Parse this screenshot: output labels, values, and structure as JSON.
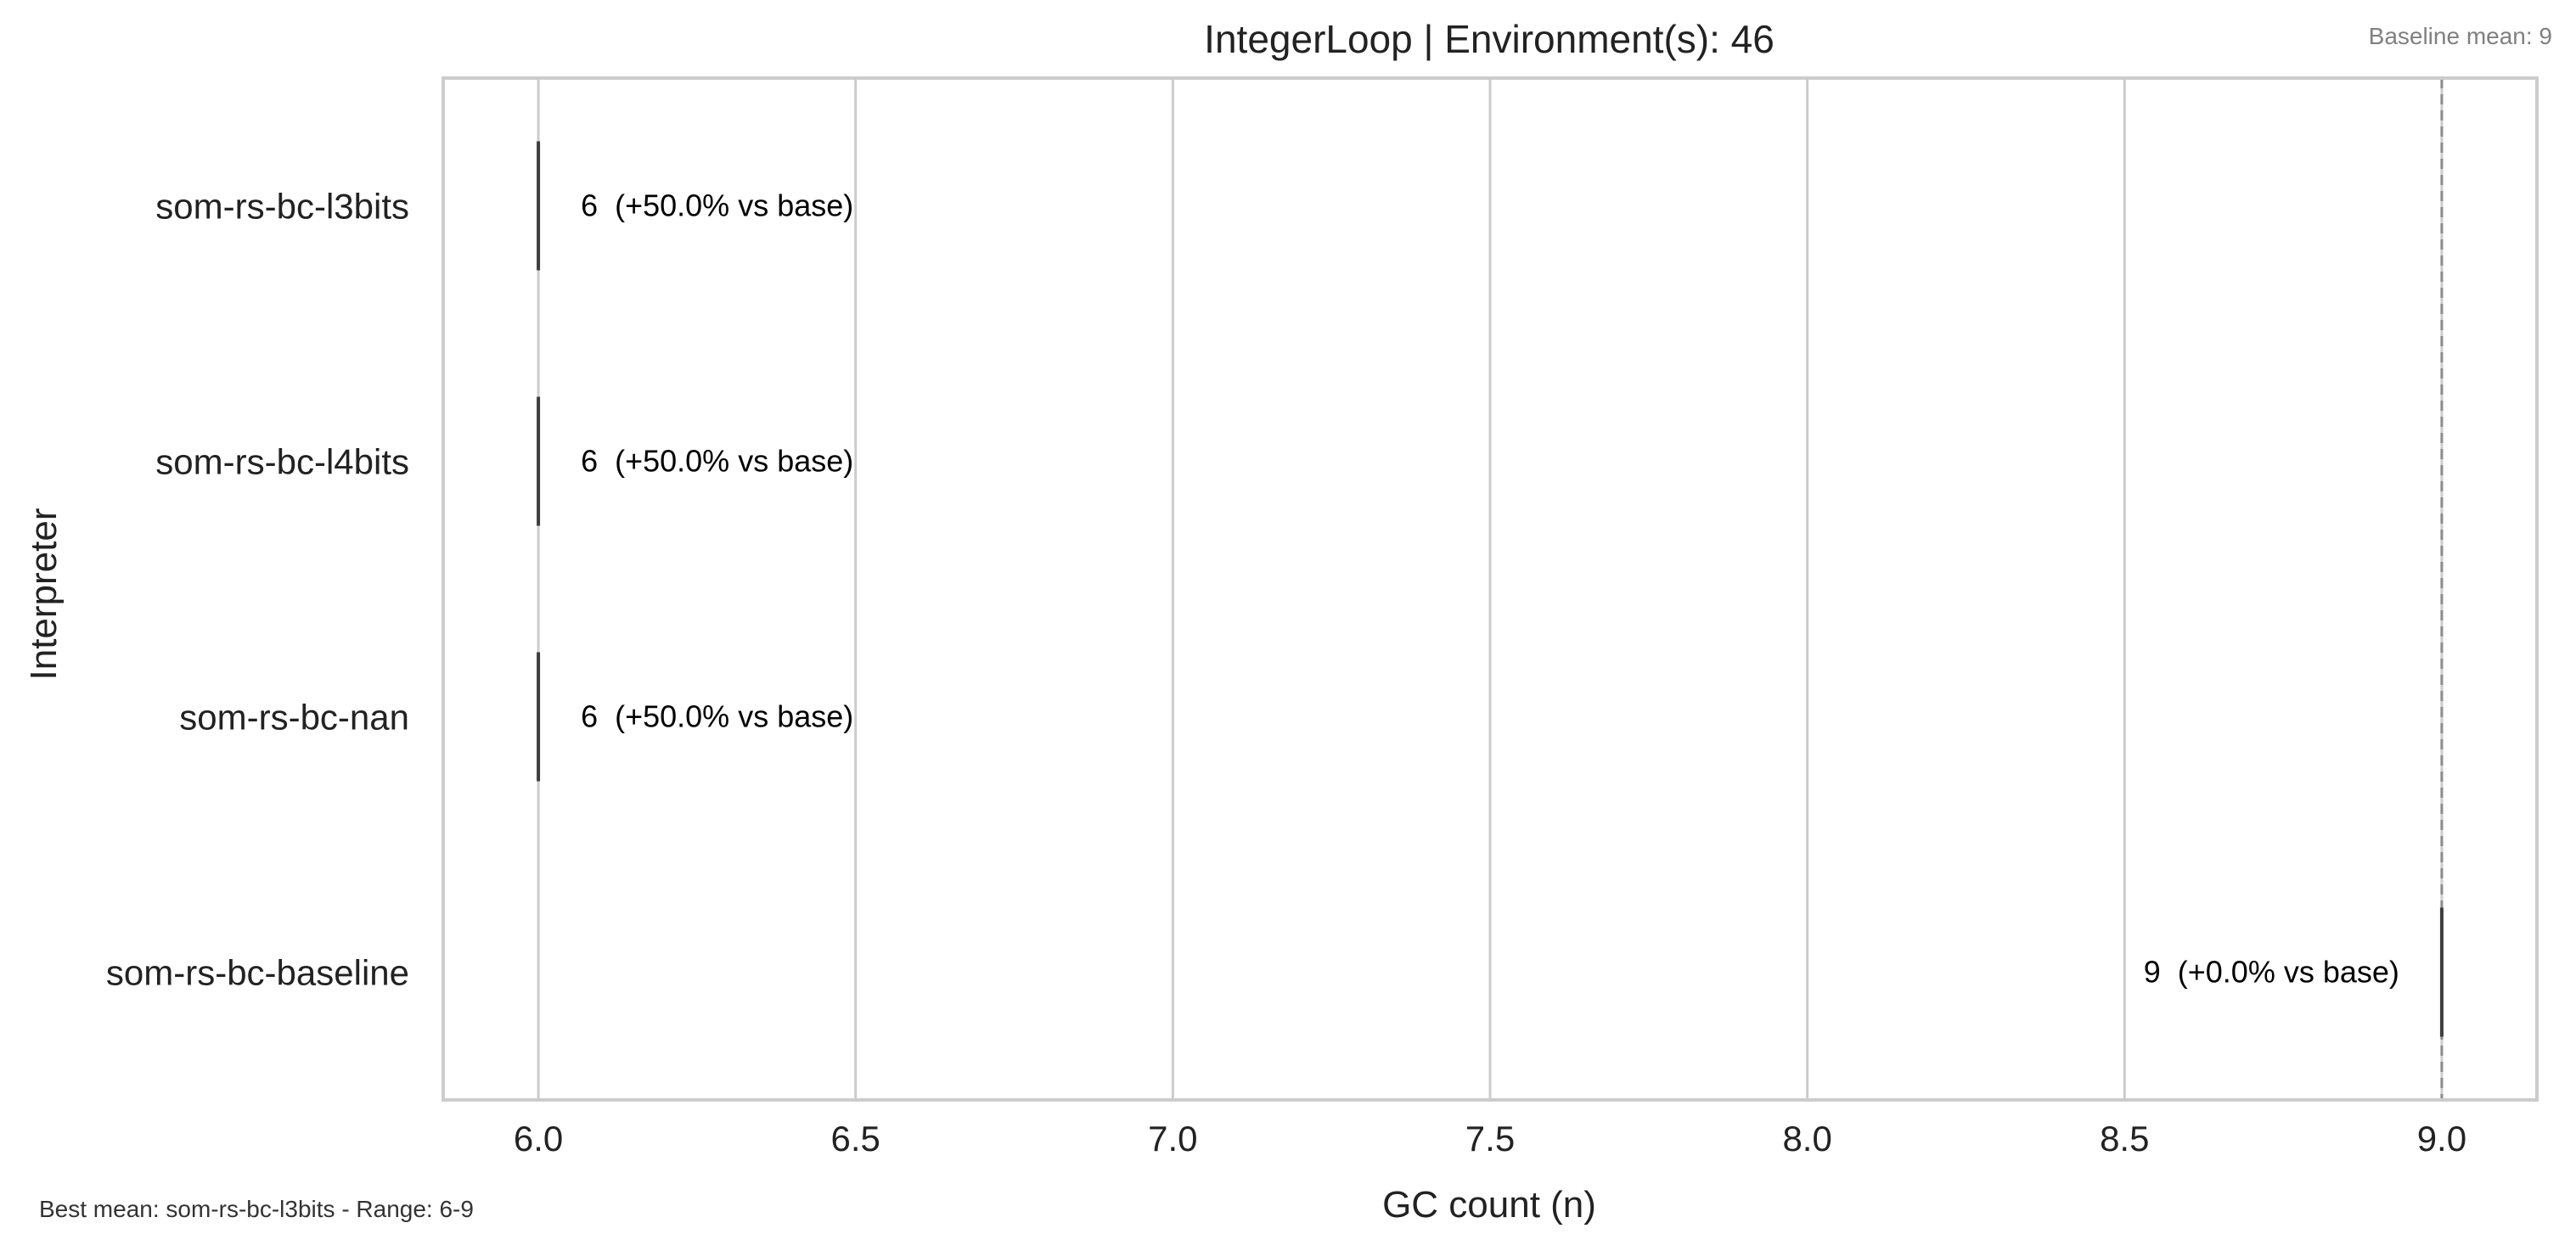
{
  "chart_data": {
    "type": "box",
    "orientation": "horizontal",
    "title": "IntegerLoop | Environment(s): 46",
    "xlabel": "GC count (n)",
    "ylabel": "Interpreter",
    "xlim": [
      5.85,
      9.15
    ],
    "xticks": [
      6.0,
      6.5,
      7.0,
      7.5,
      8.0,
      8.5,
      9.0
    ],
    "xtick_labels": [
      "6.0",
      "6.5",
      "7.0",
      "7.5",
      "8.0",
      "8.5",
      "9.0"
    ],
    "grid": true,
    "categories": [
      "som-rs-bc-l3bits",
      "som-rs-bc-l4bits",
      "som-rs-bc-nan",
      "som-rs-bc-baseline"
    ],
    "values": [
      6,
      6,
      6,
      9
    ],
    "annotations": [
      "6  (+50.0% vs base)",
      "6  (+50.0% vs base)",
      "6  (+50.0% vs base)",
      "9  (+0.0% vs base)"
    ],
    "baseline": {
      "value": 9,
      "label": "Baseline mean: 9"
    },
    "footer_note": "Best mean: som-rs-bc-l3bits - Range: 6-9",
    "colors": {
      "grid": "#cccccc",
      "frame": "#cccccc",
      "box_line": "#3d3d3d",
      "baseline_line": "#8c8c8c",
      "baseline_text": "#808080",
      "text": "#222222",
      "annotation_text": "#000000"
    }
  }
}
